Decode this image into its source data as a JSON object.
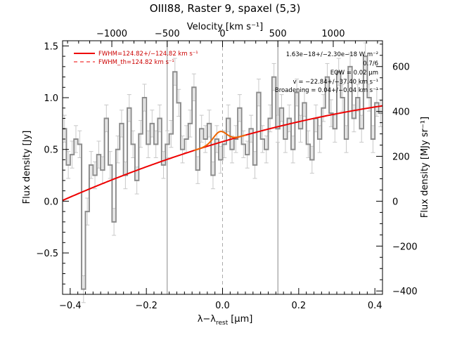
{
  "title": "OIII88, Raster 9, spaxel (5,3)",
  "chart_data": {
    "type": "line",
    "title": "OIII88, Raster 9, spaxel (5,3)",
    "xlabel": "λ−λ",
    "xlabel_sub": "rest",
    "xlabel_unit": "[μm]",
    "ylabel": "Flux density [Jy]",
    "y2label": "Flux density [MJy sr⁻¹]",
    "top_label": "Velocity [km s⁻¹]",
    "xlim": [
      -0.42,
      0.42
    ],
    "ylim": [
      -0.9,
      1.55
    ],
    "y2lim": [
      -415,
      715
    ],
    "top_ticks": [
      {
        "label": "−1000",
        "value": -0.2907
      },
      {
        "label": "−500",
        "value": -0.1453
      },
      {
        "label": "0",
        "value": 0
      },
      {
        "label": "500",
        "value": 0.1453
      },
      {
        "label": "1000",
        "value": 0.2907
      }
    ],
    "x_ticks": [
      {
        "label": "−0.4",
        "value": -0.4
      },
      {
        "label": "−0.2",
        "value": -0.2
      },
      {
        "label": "0.0",
        "value": 0.0
      },
      {
        "label": "0.2",
        "value": 0.2
      },
      {
        "label": "0.4",
        "value": 0.4
      }
    ],
    "y_ticks": [
      {
        "label": "−0.5",
        "value": -0.5
      },
      {
        "label": "0.0",
        "value": 0.0
      },
      {
        "label": "0.5",
        "value": 0.5
      },
      {
        "label": "1.0",
        "value": 1.0
      },
      {
        "label": "1.5",
        "value": 1.5
      }
    ],
    "y2_ticks": [
      {
        "label": "−400",
        "value": -400
      },
      {
        "label": "−200",
        "value": -200
      },
      {
        "label": "0",
        "value": 0
      },
      {
        "label": "200",
        "value": 200
      },
      {
        "label": "400",
        "value": 400
      },
      {
        "label": "600",
        "value": 600
      }
    ],
    "vlines": [
      -0.1453,
      0.1453
    ],
    "center_line": 0.0,
    "legend": [
      {
        "label": "FWHM=124.82+/−124.82 km s⁻¹",
        "style": "solid",
        "color": "#ee0000"
      },
      {
        "label": "FWHM_th=124.82 km s⁻¹",
        "style": "dashed",
        "color": "#ee0000"
      }
    ],
    "annotations": [
      "1.63e−18+/−2.30e−18 W m⁻²",
      "0.7/6",
      "EQW = 0.02 μm",
      "v = −22.84+/−37.40 km s⁻¹",
      "Broadening = 0.04+/−0.04 km s⁻¹"
    ],
    "continuum": {
      "a": 0.575,
      "b": 1.088,
      "c": -0.627
    },
    "line_fit": {
      "center": -0.007,
      "sigma": 0.017,
      "amplitude": 0.105
    },
    "series": [
      {
        "type": "step",
        "x": [
          -0.415,
          -0.405,
          -0.395,
          -0.385,
          -0.375,
          -0.365,
          -0.355,
          -0.345,
          -0.335,
          -0.325,
          -0.315,
          -0.305,
          -0.295,
          -0.285,
          -0.275,
          -0.265,
          -0.255,
          -0.245,
          -0.235,
          -0.225,
          -0.215,
          -0.205,
          -0.195,
          -0.185,
          -0.175,
          -0.165,
          -0.155,
          -0.145,
          -0.135,
          -0.125,
          -0.115,
          -0.105,
          -0.095,
          -0.085,
          -0.075,
          -0.065,
          -0.055,
          -0.045,
          -0.035,
          -0.025,
          -0.015,
          -0.005,
          0.005,
          0.015,
          0.025,
          0.035,
          0.045,
          0.055,
          0.065,
          0.075,
          0.085,
          0.095,
          0.105,
          0.115,
          0.125,
          0.135,
          0.145,
          0.155,
          0.165,
          0.175,
          0.185,
          0.195,
          0.205,
          0.215,
          0.225,
          0.235,
          0.245,
          0.255,
          0.265,
          0.275,
          0.285,
          0.295,
          0.305,
          0.315,
          0.325,
          0.335,
          0.345,
          0.355,
          0.365,
          0.375,
          0.385,
          0.395,
          0.405,
          0.415
        ],
        "values": [
          0.7,
          0.35,
          0.45,
          0.6,
          0.55,
          -0.85,
          -0.1,
          0.35,
          0.25,
          0.45,
          0.3,
          0.8,
          0.35,
          -0.2,
          0.5,
          0.75,
          0.25,
          0.9,
          0.55,
          0.2,
          0.65,
          1.0,
          0.55,
          0.75,
          0.55,
          0.8,
          0.35,
          0.55,
          0.65,
          1.25,
          0.95,
          0.5,
          0.6,
          0.75,
          1.1,
          0.3,
          0.7,
          0.6,
          0.75,
          0.25,
          0.6,
          0.4,
          0.55,
          0.8,
          0.5,
          0.6,
          0.9,
          0.55,
          0.45,
          0.7,
          0.35,
          1.05,
          0.6,
          0.5,
          0.8,
          1.2,
          0.7,
          0.9,
          0.6,
          0.8,
          0.5,
          1.05,
          0.7,
          0.95,
          0.55,
          0.4,
          0.8,
          0.6,
          0.9,
          1.2,
          0.85,
          0.7,
          1.25,
          1.0,
          0.6,
          1.3,
          0.8,
          1.0,
          0.7,
          1.4,
          1.0,
          0.6,
          0.95,
          0.85
        ],
        "errors": [
          0.13,
          0.13,
          0.13,
          0.13,
          0.13,
          0.13,
          0.13,
          0.13,
          0.13,
          0.13,
          0.13,
          0.13,
          0.13,
          0.13,
          0.13,
          0.13,
          0.13,
          0.13,
          0.13,
          0.13,
          0.13,
          0.13,
          0.13,
          0.13,
          0.13,
          0.13,
          0.13,
          0.13,
          0.13,
          0.13,
          0.13,
          0.13,
          0.13,
          0.13,
          0.13,
          0.13,
          0.13,
          0.13,
          0.13,
          0.13,
          0.13,
          0.13,
          0.13,
          0.13,
          0.13,
          0.13,
          0.13,
          0.13,
          0.13,
          0.13,
          0.13,
          0.13,
          0.13,
          0.13,
          0.13,
          0.13,
          0.13,
          0.13,
          0.13,
          0.13,
          0.13,
          0.13,
          0.13,
          0.13,
          0.13,
          0.13,
          0.13,
          0.13,
          0.13,
          0.13,
          0.13,
          0.13,
          0.13,
          0.13,
          0.13,
          0.13,
          0.13,
          0.13,
          0.13,
          0.13,
          0.13,
          0.13,
          0.13,
          0.13
        ]
      }
    ]
  }
}
